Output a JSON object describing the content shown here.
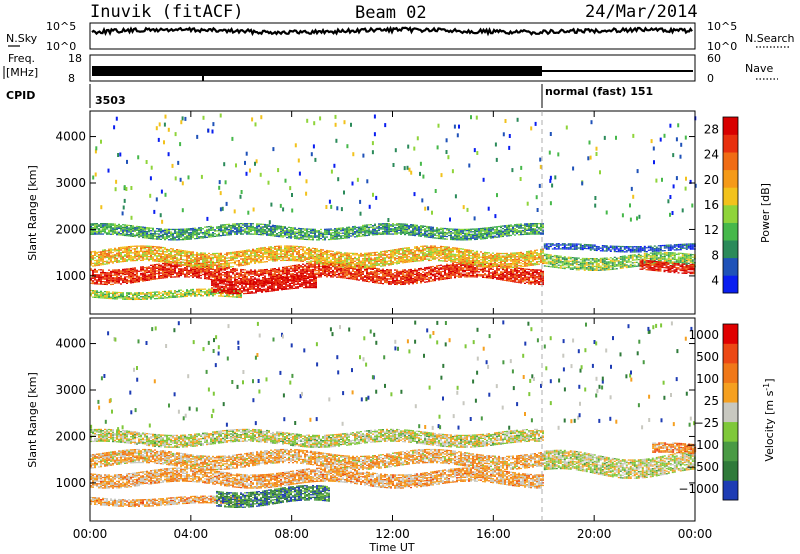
{
  "header": {
    "radar": "Inuvik (fitACF)",
    "beam": "Beam 02",
    "date": "24/Mar/2014"
  },
  "status_panel": {
    "nsky_label": "N.Sky",
    "nsky_ticks": [
      "10^5",
      "10^0"
    ],
    "nsearch_label": "N.Search",
    "nsearch_ticks": [
      "10^5",
      "10^0"
    ],
    "freq_label_1": "Freq.",
    "freq_label_2": "[MHz]",
    "freq_ticks": [
      "18",
      "8"
    ],
    "nave_label": "Nave",
    "nave_ticks": [
      "60",
      "0"
    ],
    "cpid_label": "CPID",
    "cpid_segments": [
      {
        "start": "00:00",
        "label": "3503"
      },
      {
        "start": "18:00",
        "label": "normal (fast) 151"
      }
    ]
  },
  "chart_data": [
    {
      "type": "heatmap",
      "name": "power",
      "ylabel": "Slant Range [km]",
      "yticks": [
        1000,
        2000,
        3000,
        4000
      ],
      "ylim": [
        180,
        4550
      ],
      "xticks": [
        "00:00",
        "04:00",
        "08:00",
        "12:00",
        "16:00",
        "20:00",
        "00:00"
      ],
      "xlim_hours": [
        0,
        24
      ],
      "colorbar": {
        "label": "Power [dB]",
        "ticks": [
          "4",
          "8",
          "12",
          "16",
          "20",
          "24",
          "28"
        ],
        "colors": [
          "#0a1ef0",
          "#1f52b8",
          "#2b8a5a",
          "#46b84a",
          "#8fd43a",
          "#f2c21c",
          "#f59a18",
          "#f06c14",
          "#e8300e",
          "#d80000"
        ]
      },
      "echo_bands": [
        {
          "from": 0.0,
          "to": 18.0,
          "center": 1050,
          "width": 330,
          "level": 0.88
        },
        {
          "from": 0.0,
          "to": 18.0,
          "center": 1400,
          "width": 320,
          "level": 0.6
        },
        {
          "from": 0.0,
          "to": 18.0,
          "center": 1950,
          "width": 250,
          "level": 0.3
        },
        {
          "from": 0.0,
          "to": 6.0,
          "center": 600,
          "width": 160,
          "level": 0.45
        },
        {
          "from": 4.8,
          "to": 9.0,
          "center": 800,
          "width": 260,
          "level": 0.97
        },
        {
          "from": 18.0,
          "to": 24.0,
          "center": 1600,
          "width": 130,
          "level": 0.12
        },
        {
          "from": 18.0,
          "to": 24.0,
          "center": 1300,
          "width": 260,
          "level": 0.4
        },
        {
          "from": 21.8,
          "to": 24.0,
          "center": 1200,
          "width": 220,
          "level": 0.92
        }
      ]
    },
    {
      "type": "heatmap",
      "name": "velocity",
      "ylabel": "Slant Range [km]",
      "yticks": [
        1000,
        2000,
        3000,
        4000
      ],
      "ylim": [
        180,
        4550
      ],
      "xticks": [
        "00:00",
        "04:00",
        "08:00",
        "12:00",
        "16:00",
        "20:00",
        "00:00"
      ],
      "xlabel": "Time UT",
      "xlim_hours": [
        0,
        24
      ],
      "colorbar": {
        "label": "Velocity [m s",
        "label_sup": "-1",
        "label_close": "]",
        "ticks": [
          "1000",
          "500",
          "100",
          "25",
          "−25",
          "−100",
          "−500",
          "−1000"
        ],
        "colors": [
          "#1e3cb4",
          "#2f7a3a",
          "#4a9a44",
          "#7fc83a",
          "#c8c8c0",
          "#f5a020",
          "#f07818",
          "#ec4814",
          "#e00000"
        ]
      },
      "echo_bands": [
        {
          "from": 0.0,
          "to": 18.0,
          "center": 1100,
          "width": 300,
          "level": 0.62
        },
        {
          "from": 0.0,
          "to": 18.0,
          "center": 1500,
          "width": 300,
          "level": 0.6
        },
        {
          "from": 0.0,
          "to": 18.0,
          "center": 1950,
          "width": 260,
          "level": 0.48
        },
        {
          "from": 0.0,
          "to": 6.0,
          "center": 600,
          "width": 160,
          "level": 0.62
        },
        {
          "from": 5.0,
          "to": 9.5,
          "center": 700,
          "width": 320,
          "level": 0.2
        },
        {
          "from": 18.0,
          "to": 24.0,
          "center": 1400,
          "width": 420,
          "level": 0.48
        },
        {
          "from": 22.3,
          "to": 24.0,
          "center": 1700,
          "width": 200,
          "level": 0.68
        }
      ]
    }
  ]
}
